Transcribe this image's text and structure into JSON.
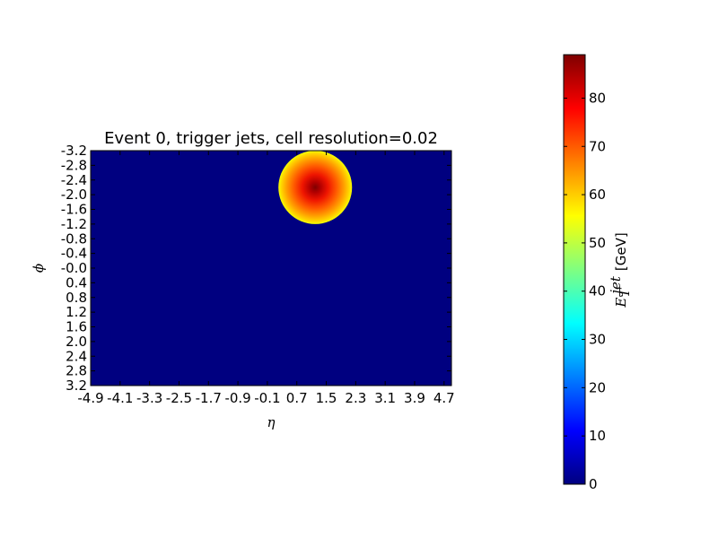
{
  "chart_data": {
    "type": "heatmap",
    "title": "Event 0, trigger jets, cell resolution=0.02",
    "xlabel": "η",
    "ylabel": "ϕ",
    "xlim": [
      -4.9,
      4.9
    ],
    "ylim": [
      -3.2,
      3.2
    ],
    "y_inverted": true,
    "x_ticks": [
      "-4.9",
      "-4.1",
      "-3.3",
      "-2.5",
      "-1.7",
      "-0.9",
      "-0.1",
      "0.7",
      "1.5",
      "2.3",
      "3.1",
      "3.9",
      "4.7"
    ],
    "x_tick_values": [
      -4.9,
      -4.1,
      -3.3,
      -2.5,
      -1.7,
      -0.9,
      -0.1,
      0.7,
      1.5,
      2.3,
      3.1,
      3.9,
      4.7
    ],
    "y_ticks": [
      "-3.2",
      "-2.8",
      "-2.4",
      "-2.0",
      "-1.6",
      "-1.2",
      "-0.8",
      "-0.4",
      "-0.0",
      "0.4",
      "0.8",
      "1.2",
      "1.6",
      "2.0",
      "2.4",
      "2.8",
      "3.2"
    ],
    "y_tick_values": [
      -3.2,
      -2.8,
      -2.4,
      -2.0,
      -1.6,
      -1.2,
      -0.8,
      -0.4,
      0.0,
      0.4,
      0.8,
      1.2,
      1.6,
      2.0,
      2.4,
      2.8,
      3.2
    ],
    "background_value": 0,
    "jets": [
      {
        "eta": 1.2,
        "phi": -2.2,
        "radius": 1.0,
        "et_center": 89,
        "et_edge": 55,
        "phi_wrap": true
      }
    ],
    "colorbar": {
      "label_math": "E",
      "label_sub": "T",
      "label_sup": "jet",
      "label_unit": "[GeV]",
      "colormap": "jet",
      "vmin": 0,
      "vmax": 89,
      "ticks": [
        "0",
        "10",
        "20",
        "30",
        "40",
        "50",
        "60",
        "70",
        "80"
      ],
      "tick_values": [
        0,
        10,
        20,
        30,
        40,
        50,
        60,
        70,
        80
      ]
    }
  }
}
